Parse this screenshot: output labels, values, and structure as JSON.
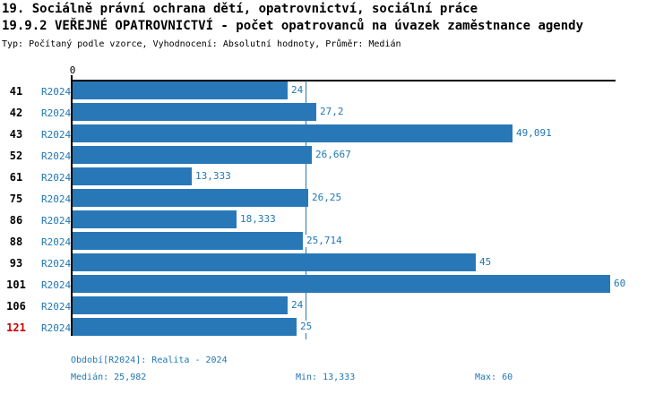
{
  "title": {
    "line1": "19. Sociálně právní ochrana dětí, opatrovnictví, sociální práce",
    "line2": "19.9.2 VEŘEJNÉ OPATROVNICTVÍ - počet opatrovanců na úvazek zaměstnance agendy",
    "subtitle": "Typ: Počítaný podle vzorce, Vyhodnocení: Absolutní hodnoty, Průměr: Medián"
  },
  "chart_data": {
    "type": "bar",
    "orientation": "horizontal",
    "axis_origin_label": "0",
    "categories": [
      "41",
      "42",
      "43",
      "52",
      "61",
      "75",
      "86",
      "88",
      "93",
      "101",
      "106",
      "121"
    ],
    "series_label": "R2024",
    "values": [
      24,
      27.2,
      49.091,
      26.667,
      13.333,
      26.25,
      18.333,
      25.714,
      45,
      60,
      24,
      25
    ],
    "value_labels": [
      "24",
      "27,2",
      "49,091",
      "26,667",
      "13,333",
      "26,25",
      "18,333",
      "25,714",
      "45",
      "60",
      "24",
      "25"
    ],
    "highlighted_category": "121",
    "median": 25.982,
    "min": 13.333,
    "max": 60,
    "xlim": [
      0,
      60.6
    ],
    "x_axis_position": "top",
    "grid": "median reference line only",
    "legend": "none"
  },
  "footer": {
    "period": "Období[R2024]: Realita - 2024",
    "median": "Medián: 25,982",
    "min": "Min: 13,333",
    "max": "Max: 60"
  },
  "colors": {
    "bar": "#2878b8",
    "text_blue": "#1f77b4",
    "highlight_red": "#cc0000",
    "axis": "#000000",
    "background": "#ffffff"
  }
}
